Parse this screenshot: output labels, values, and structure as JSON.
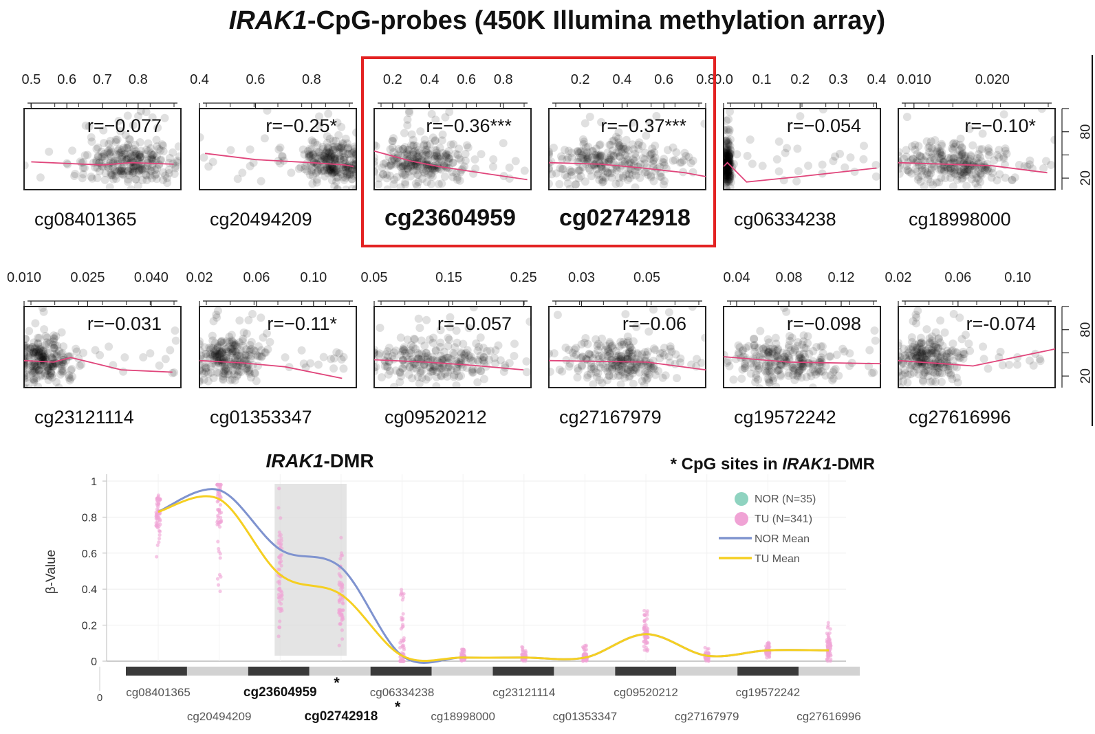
{
  "title": {
    "gene": "IRAK1",
    "rest": "-CpG-probes (450K Illumina methylation array)"
  },
  "colors": {
    "point": "#000000",
    "trend": "#e0457b",
    "highlight": "#e32222",
    "nor_point": "#8fd3c0",
    "tu_point": "#f0a3d5",
    "nor_mean": "#7f93cf",
    "tu_mean": "#f5cf22",
    "band_dark": "#3a3a3a",
    "band_light": "#d2d2d2",
    "dmr_shade": "#d8d8d8"
  },
  "y_axis_ticks": [
    "20",
    "80"
  ],
  "chart_data": [
    {
      "type": "scatter",
      "probe": "cg08401365",
      "r": "r=−0.077",
      "ticks": [
        "0.5",
        "0.6",
        "0.7",
        "0.8"
      ],
      "xlim": [
        0.48,
        0.92
      ],
      "ylim": [
        5,
        110
      ],
      "trend": [
        [
          0.5,
          41
        ],
        [
          0.6,
          39
        ],
        [
          0.7,
          37
        ],
        [
          0.78,
          40
        ],
        [
          0.9,
          38
        ]
      ],
      "center": [
        0.78,
        40
      ],
      "spread": [
        0.06,
        14
      ],
      "n": 260,
      "highlight": false
    },
    {
      "type": "scatter",
      "probe": "cg20494209",
      "r": "r=−0.25*",
      "ticks": [
        "0.4",
        "0.6",
        "0.8"
      ],
      "xlim": [
        0.4,
        0.96
      ],
      "ylim": [
        5,
        110
      ],
      "trend": [
        [
          0.42,
          52
        ],
        [
          0.6,
          44
        ],
        [
          0.8,
          40
        ],
        [
          0.92,
          37
        ],
        [
          0.95,
          35
        ]
      ],
      "center": [
        0.88,
        41
      ],
      "spread": [
        0.05,
        14
      ],
      "n": 260,
      "highlight": false
    },
    {
      "type": "scatter",
      "probe": "cg23604959",
      "r": "r=−0.36***",
      "ticks": [
        "0.2",
        "0.4",
        "0.6",
        "0.8"
      ],
      "xlim": [
        0.1,
        0.95
      ],
      "ylim": [
        5,
        110
      ],
      "trend": [
        [
          0.1,
          55
        ],
        [
          0.3,
          42
        ],
        [
          0.45,
          35
        ],
        [
          0.7,
          26
        ],
        [
          0.93,
          18
        ]
      ],
      "center": [
        0.36,
        40
      ],
      "spread": [
        0.12,
        14
      ],
      "n": 260,
      "highlight": true
    },
    {
      "type": "scatter",
      "probe": "cg02742918",
      "r": "r=−0.37***",
      "ticks": [
        "0.2",
        "0.4",
        "0.6",
        "0.8"
      ],
      "xlim": [
        0.05,
        0.8
      ],
      "ylim": [
        5,
        110
      ],
      "trend": [
        [
          0.05,
          40
        ],
        [
          0.3,
          38
        ],
        [
          0.5,
          33
        ],
        [
          0.7,
          27
        ],
        [
          0.8,
          22
        ]
      ],
      "center": [
        0.35,
        40
      ],
      "spread": [
        0.15,
        14
      ],
      "n": 260,
      "highlight": true
    },
    {
      "type": "scatter",
      "probe": "cg06334238",
      "r": "r=−0.054",
      "ticks": [
        "0.0",
        "0.1",
        "0.2",
        "0.3",
        "0.4"
      ],
      "xlim": [
        0.0,
        0.41
      ],
      "ylim": [
        5,
        110
      ],
      "trend": [
        [
          0.0,
          35
        ],
        [
          0.01,
          40
        ],
        [
          0.06,
          15
        ],
        [
          0.2,
          22
        ],
        [
          0.4,
          33
        ]
      ],
      "center": [
        0.01,
        38
      ],
      "spread": [
        0.005,
        15
      ],
      "n": 220,
      "highlight": false
    },
    {
      "type": "scatter",
      "probe": "cg18998000",
      "r": "r=−0.10*",
      "ticks": [
        "0.010",
        "0.020"
      ],
      "xlim": [
        0.008,
        0.028
      ],
      "ylim": [
        5,
        110
      ],
      "trend": [
        [
          0.008,
          40
        ],
        [
          0.014,
          38
        ],
        [
          0.02,
          36
        ],
        [
          0.027,
          27
        ]
      ],
      "center": [
        0.015,
        40
      ],
      "spread": [
        0.0035,
        14
      ],
      "n": 260,
      "highlight": false
    },
    {
      "type": "scatter",
      "probe": "cg23121114",
      "r": "r=−0.031",
      "ticks": [
        "0.010",
        "0.025",
        "0.040"
      ],
      "xlim": [
        0.01,
        0.047
      ],
      "ylim": [
        5,
        110
      ],
      "trend": [
        [
          0.01,
          40
        ],
        [
          0.017,
          38
        ],
        [
          0.021,
          44
        ],
        [
          0.033,
          28
        ],
        [
          0.045,
          25
        ]
      ],
      "center": [
        0.015,
        40
      ],
      "spread": [
        0.0035,
        14
      ],
      "n": 240,
      "highlight": false
    },
    {
      "type": "scatter",
      "probe": "cg01353347",
      "r": "r=−0.11*",
      "ticks": [
        "0.02",
        "0.06",
        "0.10"
      ],
      "xlim": [
        0.02,
        0.13
      ],
      "ylim": [
        5,
        110
      ],
      "trend": [
        [
          0.02,
          40
        ],
        [
          0.05,
          37
        ],
        [
          0.08,
          32
        ],
        [
          0.12,
          17
        ]
      ],
      "center": [
        0.04,
        42
      ],
      "spread": [
        0.012,
        14
      ],
      "n": 240,
      "highlight": false
    },
    {
      "type": "scatter",
      "probe": "cg09520212",
      "r": "r=−0.057",
      "ticks": [
        "0.05",
        "0.15",
        "0.25"
      ],
      "xlim": [
        0.05,
        0.26
      ],
      "ylim": [
        5,
        110
      ],
      "trend": [
        [
          0.05,
          41
        ],
        [
          0.12,
          38
        ],
        [
          0.18,
          34
        ],
        [
          0.25,
          28
        ]
      ],
      "center": [
        0.13,
        40
      ],
      "spread": [
        0.04,
        14
      ],
      "n": 240,
      "highlight": false
    },
    {
      "type": "scatter",
      "probe": "cg27167979",
      "r": "r=−0.06",
      "ticks": [
        "0.03",
        "0.05"
      ],
      "xlim": [
        0.02,
        0.068
      ],
      "ylim": [
        5,
        110
      ],
      "trend": [
        [
          0.02,
          40
        ],
        [
          0.05,
          38
        ],
        [
          0.068,
          28
        ]
      ],
      "center": [
        0.042,
        40
      ],
      "spread": [
        0.008,
        14
      ],
      "n": 240,
      "highlight": false
    },
    {
      "type": "scatter",
      "probe": "cg19572242",
      "r": "r=−0.098",
      "ticks": [
        "0.04",
        "0.08",
        "0.12"
      ],
      "xlim": [
        0.03,
        0.15
      ],
      "ylim": [
        5,
        110
      ],
      "trend": [
        [
          0.03,
          45
        ],
        [
          0.08,
          38
        ],
        [
          0.15,
          36
        ]
      ],
      "center": [
        0.08,
        40
      ],
      "spread": [
        0.02,
        14
      ],
      "n": 240,
      "highlight": false
    },
    {
      "type": "scatter",
      "probe": "cg27616996",
      "r": "r=-0.074",
      "ticks": [
        "0.02",
        "0.06",
        "0.10"
      ],
      "xlim": [
        0.02,
        0.125
      ],
      "ylim": [
        5,
        110
      ],
      "trend": [
        [
          0.02,
          40
        ],
        [
          0.05,
          36
        ],
        [
          0.07,
          33
        ],
        [
          0.125,
          55
        ]
      ],
      "center": [
        0.04,
        40
      ],
      "spread": [
        0.012,
        14
      ],
      "n": 240,
      "highlight": false
    },
    {
      "type": "line",
      "title_gene": "IRAK1",
      "title_rest": "-DMR",
      "note_star": "* CpG sites in ",
      "note_gene": "IRAK1",
      "note_rest": "-DMR",
      "ylabel": "β-Value",
      "yticks": [
        "1",
        "0.8",
        "0.6",
        "0.4",
        "0.2",
        "0"
      ],
      "x_origin_label": "0",
      "ylim": [
        0,
        1
      ],
      "categories": [
        "cg08401365",
        "cg20494209",
        "cg23604959",
        "cg02742918",
        "cg06334238",
        "cg18998000",
        "cg23121114",
        "cg01353347",
        "cg09520212",
        "cg27167979",
        "cg19572242",
        "cg27616996"
      ],
      "bold_categories": [
        "cg23604959",
        "cg02742918"
      ],
      "dmr_range": [
        "cg23604959",
        "cg02742918"
      ],
      "legend_position": "top-right",
      "legend": [
        "NOR (N=35)",
        "TU (N=341)",
        "NOR Mean",
        "TU Mean"
      ],
      "series": [
        {
          "name": "NOR Mean",
          "values": [
            0.83,
            0.95,
            0.62,
            0.52,
            0.03,
            0.02,
            0.02,
            0.02,
            0.15,
            0.03,
            0.06,
            0.06
          ]
        },
        {
          "name": "TU Mean",
          "values": [
            0.83,
            0.9,
            0.48,
            0.37,
            0.03,
            0.02,
            0.02,
            0.02,
            0.15,
            0.03,
            0.06,
            0.06
          ]
        }
      ],
      "tu_ranges": [
        [
          0.55,
          0.93
        ],
        [
          0.29,
          0.98
        ],
        [
          0.05,
          0.97
        ],
        [
          0.05,
          0.76
        ],
        [
          0.0,
          0.41
        ],
        [
          0.0,
          0.07
        ],
        [
          0.0,
          0.08
        ],
        [
          0.0,
          0.09
        ],
        [
          0.05,
          0.29
        ],
        [
          0.0,
          0.08
        ],
        [
          0.02,
          0.12
        ],
        [
          0.0,
          0.22
        ]
      ]
    }
  ]
}
